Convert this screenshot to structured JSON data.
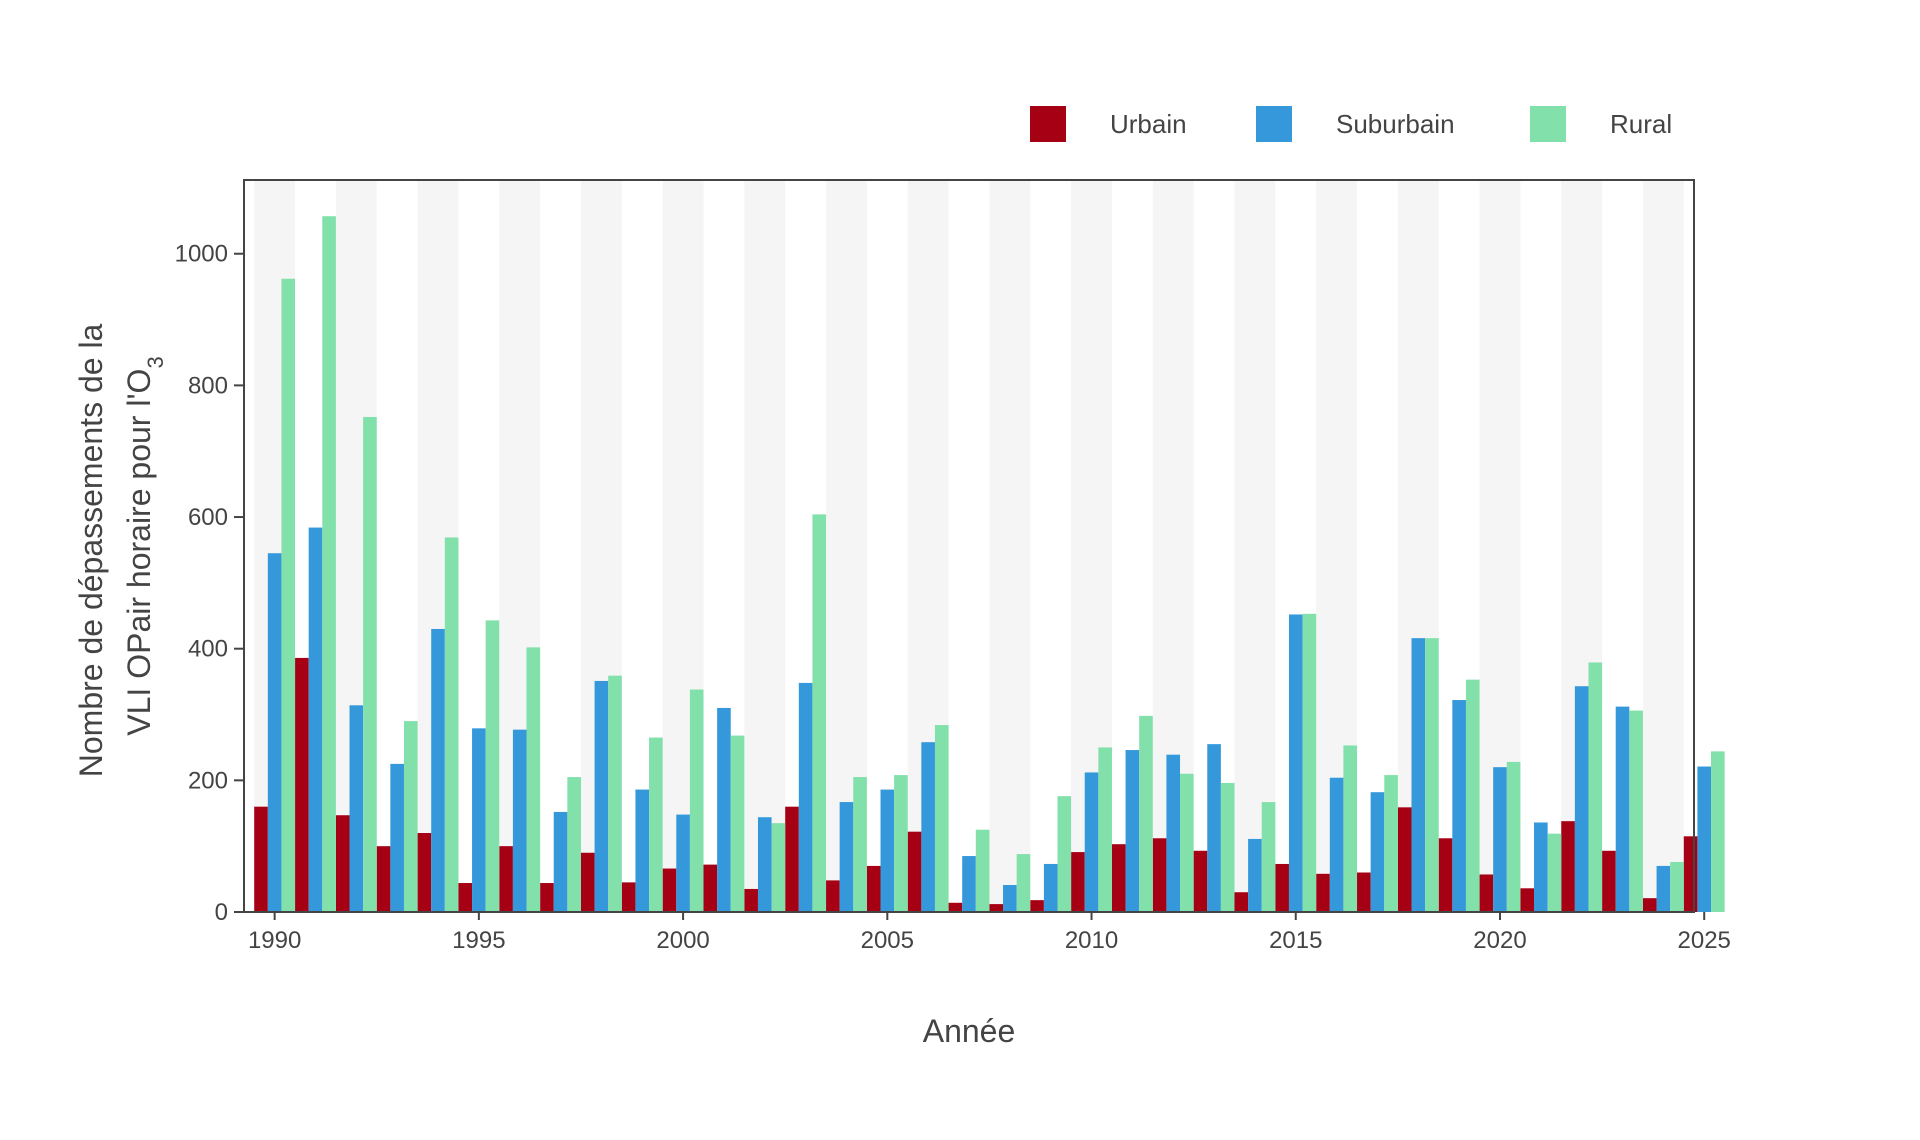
{
  "chart_data": {
    "type": "bar",
    "xlabel": "Année",
    "ylabel_line1": "Nombre de dépassements de la",
    "ylabel_line2_prefix": "VLI OPair horaire pour l'O",
    "ylabel_line2_subscript": "3",
    "ylim": [
      0,
      1112
    ],
    "yticks": [
      0,
      200,
      400,
      600,
      800,
      1000
    ],
    "xticks": [
      1990,
      1995,
      2000,
      2005,
      2010,
      2015,
      2020,
      2025
    ],
    "x": [
      1990,
      1991,
      1992,
      1993,
      1994,
      1995,
      1996,
      1997,
      1998,
      1999,
      2000,
      2001,
      2002,
      2003,
      2004,
      2005,
      2006,
      2007,
      2008,
      2009,
      2010,
      2011,
      2012,
      2013,
      2014,
      2015,
      2016,
      2017,
      2018,
      2019,
      2020,
      2021,
      2022,
      2023,
      2024,
      2025
    ],
    "legend_position": "top-right",
    "alternating_year_bands": true,
    "series": [
      {
        "name": "Urbain",
        "color": "#a50014",
        "values": [
          160,
          386,
          147,
          100,
          120,
          44,
          100,
          44,
          90,
          45,
          66,
          72,
          35,
          160,
          48,
          70,
          122,
          14,
          12,
          18,
          91,
          103,
          112,
          93,
          30,
          73,
          58,
          60,
          159,
          112,
          57,
          36,
          138,
          93,
          21,
          115
        ]
      },
      {
        "name": "Suburbain",
        "color": "#3498db",
        "values": [
          545,
          584,
          314,
          225,
          430,
          279,
          277,
          152,
          351,
          186,
          148,
          310,
          144,
          348,
          167,
          186,
          258,
          85,
          41,
          73,
          212,
          246,
          239,
          255,
          111,
          452,
          204,
          182,
          416,
          322,
          220,
          136,
          343,
          312,
          70,
          221
        ]
      },
      {
        "name": "Rural",
        "color": "#82e0aa",
        "values": [
          962,
          1057,
          752,
          290,
          569,
          443,
          402,
          205,
          359,
          265,
          338,
          268,
          135,
          604,
          205,
          208,
          284,
          125,
          88,
          176,
          250,
          298,
          210,
          196,
          167,
          453,
          253,
          208,
          416,
          353,
          228,
          119,
          379,
          306,
          76,
          244
        ]
      }
    ]
  }
}
